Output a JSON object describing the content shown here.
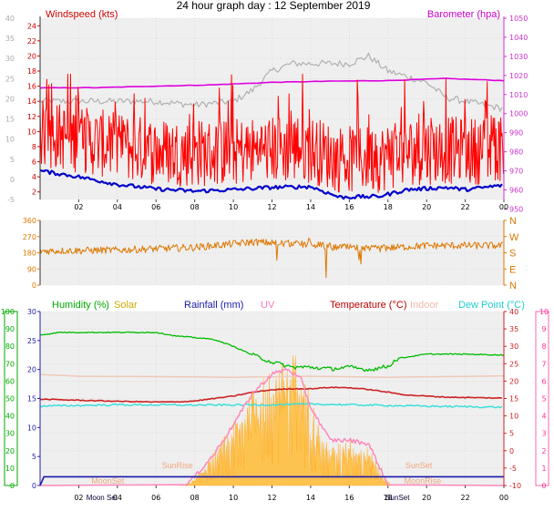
{
  "title": "24 hour graph day : 12 September 2019",
  "colors": {
    "windspeed": "#ff0000",
    "gust": "#ff1a1a",
    "barometer": "#dd00dd",
    "grey": "#b0b0b0",
    "avgwind": "#0000cc",
    "direction": "#dd7700",
    "humidity": "#00bb00",
    "solar": "#ffbb33",
    "rainfall": "#1a1aaa",
    "uv": "#ff88bb",
    "temperature": "#cc2222",
    "indoor": "#f0c8b8",
    "dewpoint": "#33dddd",
    "plotbg": "#efefef",
    "gridline": "#d0d0d0",
    "axisleft": "#2222aa",
    "axisright": "#cc33cc",
    "axisgreen": "#00aa00",
    "axispink": "#ff3399"
  },
  "hour_labels": [
    "02",
    "04",
    "06",
    "08",
    "10",
    "12",
    "14",
    "16",
    "18",
    "20",
    "22",
    "00"
  ],
  "chart_data": [
    {
      "type": "line",
      "name": "wind-barometer",
      "legend": {
        "windspeed": "Windspeed (kts)",
        "barometer": "Barometer (hpa)"
      },
      "y_left_ticks": [
        "40",
        "35",
        "30",
        "25",
        "20",
        "15",
        "10",
        "5",
        "0",
        "-5"
      ],
      "y_left_range": [
        -5,
        40
      ],
      "y_inner_ticks": [
        "24",
        "22",
        "20",
        "18",
        "16",
        "14",
        "12",
        "10",
        "8",
        "6",
        "4",
        "2"
      ],
      "y_inner_range": [
        1,
        25
      ],
      "y_right_ticks": [
        "1050",
        "1040",
        "1030",
        "1020",
        "1010",
        "1000",
        "990",
        "980",
        "970",
        "960",
        "950"
      ],
      "y_right_range": [
        955,
        1050
      ],
      "barometer_anchor": {
        "x": [
          0,
          3,
          6,
          9,
          12,
          15,
          18,
          21,
          24
        ],
        "y": [
          1013.5,
          1013.6,
          1014.4,
          1015.1,
          1016.4,
          1017.0,
          1017.3,
          1018.4,
          1017.3
        ]
      },
      "grey_line_anchor": {
        "x": [
          0,
          6,
          8,
          10,
          11,
          12,
          13,
          16,
          17,
          18,
          20,
          21,
          24
        ],
        "y": [
          14,
          14,
          13.5,
          14,
          15.5,
          18,
          19,
          19,
          20,
          18,
          16.5,
          14.5,
          13
        ]
      },
      "avg_wind_anchor": {
        "x": [
          0,
          2,
          4,
          6,
          8,
          10,
          12,
          14,
          15.5,
          17.5,
          19,
          21,
          22,
          24
        ],
        "y": [
          4.8,
          4,
          3,
          2.4,
          2.1,
          2.3,
          2.6,
          2.7,
          1.3,
          1.4,
          2.3,
          2.6,
          2.3,
          2.9
        ]
      },
      "wind_range": {
        "low": 0.5,
        "high": 17.6
      }
    },
    {
      "type": "scatter",
      "name": "wind-direction",
      "y_left_ticks": [
        "360",
        "270",
        "180",
        "90",
        "0"
      ],
      "y_right_ticks": [
        "N",
        "W",
        "S",
        "E",
        "N"
      ],
      "y_range": [
        0,
        360
      ],
      "mean_direction_anchor": {
        "x": [
          0,
          4,
          8,
          11,
          14,
          17,
          20,
          24
        ],
        "y": [
          190,
          195,
          210,
          240,
          225,
          200,
          220,
          220
        ]
      },
      "spread_deg": 25
    },
    {
      "type": "line",
      "name": "humidity-temperature",
      "legend": {
        "humidity": "Humidity (%)",
        "solar": "Solar",
        "rainfall": "Rainfall (mm)",
        "uv": "UV",
        "temperature": "Temperature (°C)",
        "indoor": "Indoor",
        "dewpoint": "Dew Point (°C)"
      },
      "y_humidity_ticks": [
        "100",
        "90",
        "80",
        "70",
        "60",
        "50",
        "40",
        "30",
        "20",
        "10",
        "0"
      ],
      "y_humidity_range": [
        0,
        100
      ],
      "y_rain_ticks": [
        "30",
        "25",
        "20",
        "15",
        "10",
        "5",
        "0"
      ],
      "y_rain_range": [
        0,
        30
      ],
      "y_temp_ticks": [
        "40",
        "35",
        "30",
        "25",
        "20",
        "15",
        "10",
        "5",
        "0",
        "-5",
        "-10"
      ],
      "y_temp_range": [
        -10,
        40
      ],
      "y_uv_ticks": [
        "10",
        "9",
        "8",
        "7",
        "6",
        "5",
        "4",
        "3",
        "2",
        "1",
        "0"
      ],
      "y_uv_range": [
        0,
        10
      ],
      "humidity_anchor": {
        "x": [
          0,
          1,
          6,
          7,
          9,
          10,
          11,
          12,
          13,
          14,
          15,
          16,
          17,
          18,
          18.5,
          20,
          22,
          24
        ],
        "y": [
          86.5,
          88,
          88,
          86,
          84,
          80,
          75,
          71,
          68,
          68,
          67,
          68,
          66.5,
          68.5,
          73,
          75.5,
          75.5,
          75
        ]
      },
      "temperature_anchor": {
        "x": [
          0,
          2,
          4,
          6,
          7,
          8,
          9,
          10,
          11,
          12,
          13,
          14,
          15,
          16,
          17,
          18,
          19,
          21,
          24
        ],
        "y": [
          14.8,
          14.5,
          14.2,
          14,
          14,
          14.3,
          15,
          15.7,
          16.8,
          17.5,
          17.8,
          17.8,
          18.2,
          18.1,
          17.6,
          16.8,
          16,
          15.4,
          15.1
        ]
      },
      "dewpoint_anchor": {
        "x": [
          0,
          4,
          8,
          12,
          14,
          16,
          20,
          24
        ],
        "y": [
          12.8,
          13.2,
          13.1,
          13.2,
          13.4,
          13.2,
          12.8,
          12.5
        ]
      },
      "indoor_anchor": {
        "x": [
          0,
          2,
          6,
          10,
          14,
          18,
          24
        ],
        "y": [
          21.9,
          21.4,
          21.3,
          21.1,
          21.4,
          21.1,
          21.5
        ]
      },
      "rainfall_level": 1.5,
      "solar_profile": {
        "x": [
          7.3,
          8,
          9,
          10,
          11,
          12,
          12.8,
          13.2,
          13.6,
          14,
          14.5,
          15,
          16,
          17,
          17.8,
          18.2
        ],
        "y": [
          0,
          3,
          18,
          33,
          50,
          62,
          66,
          70,
          60,
          50,
          28,
          20,
          25,
          20,
          5,
          0
        ]
      },
      "uv_profile": {
        "x": [
          7.5,
          8,
          9,
          10,
          11,
          12,
          12.8,
          13.5,
          14,
          15,
          16,
          17,
          17.6,
          18
        ],
        "y": [
          0,
          0.5,
          1.8,
          3.5,
          5.3,
          6.4,
          6.7,
          6.1,
          4.5,
          2.6,
          2.6,
          2.4,
          1,
          0
        ]
      },
      "annotations": [
        {
          "text": "SunRise",
          "pos": "upper",
          "hour": 7.1
        },
        {
          "text": "SunSet",
          "pos": "upper",
          "hour": 19.6
        },
        {
          "text": "MoonSet",
          "pos": "lower",
          "hour": 3.5
        },
        {
          "text": "MoonRise",
          "pos": "lower",
          "hour": 19.8
        },
        {
          "text": "Moon Set",
          "pos": "bottom",
          "hour": 3.2
        },
        {
          "text": "SunSet",
          "pos": "bottom",
          "hour": 18.5
        }
      ]
    }
  ]
}
